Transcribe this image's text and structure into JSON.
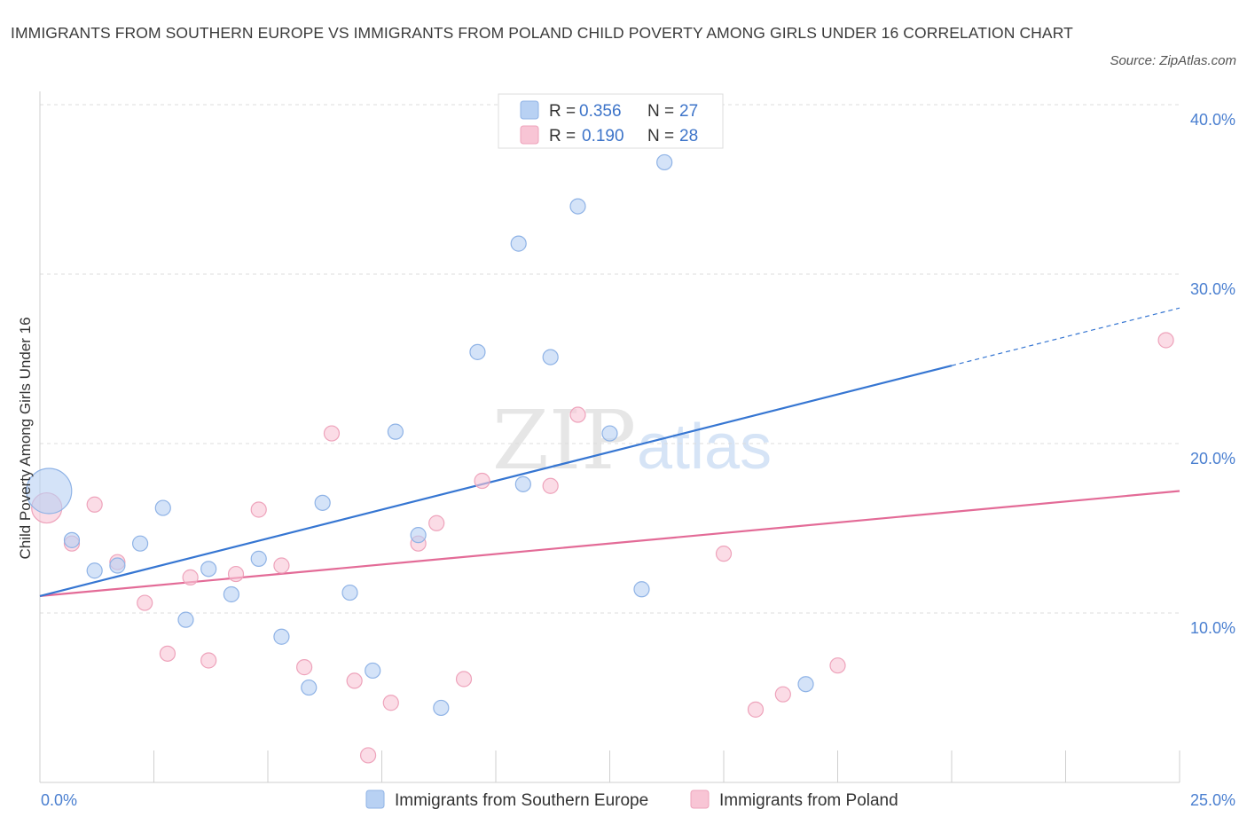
{
  "title": "IMMIGRANTS FROM SOUTHERN EUROPE VS IMMIGRANTS FROM POLAND CHILD POVERTY AMONG GIRLS UNDER 16 CORRELATION CHART",
  "source": "Source: ZipAtlas.com",
  "watermark": {
    "zip": "ZIP",
    "atlas": "atlas"
  },
  "colors": {
    "blue_fill": "#b8d1f3",
    "blue_stroke": "#8fb3e6",
    "blue_line": "#3676d2",
    "pink_fill": "#f8c5d5",
    "pink_stroke": "#eea3bb",
    "pink_line": "#e36b97",
    "grid": "#dcdcdc",
    "axis_label": "#4a7fd0"
  },
  "legend_box": {
    "rows": [
      {
        "r_label": "R =",
        "r_value": "0.356",
        "n_label": "N =",
        "n_value": "27"
      },
      {
        "r_label": "R =",
        "r_value": "0.190",
        "n_label": "N =",
        "n_value": "28"
      }
    ]
  },
  "chart_data": {
    "type": "scatter",
    "title": "IMMIGRANTS FROM SOUTHERN EUROPE VS IMMIGRANTS FROM POLAND CHILD POVERTY AMONG GIRLS UNDER 16 CORRELATION CHART",
    "xlabel": "",
    "ylabel": "Child Poverty Among Girls Under 16",
    "xlim": [
      0,
      25
    ],
    "ylim": [
      0,
      40
    ],
    "x_tick_labels": [
      {
        "value": 0,
        "label": "0.0%"
      },
      {
        "value": 25,
        "label": "25.0%"
      }
    ],
    "y_tick_labels": [
      {
        "value": 10,
        "label": "10.0%"
      },
      {
        "value": 20,
        "label": "20.0%"
      },
      {
        "value": 30,
        "label": "30.0%"
      },
      {
        "value": 40,
        "label": "40.0%"
      }
    ],
    "grid": true,
    "legend_position": "bottom",
    "series": [
      {
        "name": "Immigrants from Southern Europe",
        "color": "#b8d1f3",
        "R": 0.356,
        "N": 27,
        "trend": {
          "x0": 0,
          "y0": 11.0,
          "x1": 20,
          "y1": 24.6,
          "dash_to_x": 25,
          "dash_to_y": 28.0
        },
        "points": [
          {
            "x": 0.2,
            "y": 17.2,
            "size": 3
          },
          {
            "x": 0.7,
            "y": 14.3
          },
          {
            "x": 1.2,
            "y": 12.5
          },
          {
            "x": 1.7,
            "y": 12.8
          },
          {
            "x": 2.2,
            "y": 14.1
          },
          {
            "x": 2.7,
            "y": 16.2
          },
          {
            "x": 3.2,
            "y": 9.6
          },
          {
            "x": 3.7,
            "y": 12.6
          },
          {
            "x": 4.2,
            "y": 11.1
          },
          {
            "x": 4.8,
            "y": 13.2
          },
          {
            "x": 5.3,
            "y": 8.6
          },
          {
            "x": 5.9,
            "y": 5.6
          },
          {
            "x": 6.2,
            "y": 16.5
          },
          {
            "x": 6.8,
            "y": 11.2
          },
          {
            "x": 7.3,
            "y": 6.6
          },
          {
            "x": 7.8,
            "y": 20.7
          },
          {
            "x": 8.3,
            "y": 14.6
          },
          {
            "x": 8.8,
            "y": 4.4
          },
          {
            "x": 9.6,
            "y": 25.4
          },
          {
            "x": 10.5,
            "y": 31.8
          },
          {
            "x": 10.6,
            "y": 17.6
          },
          {
            "x": 11.2,
            "y": 25.1
          },
          {
            "x": 11.8,
            "y": 34.0
          },
          {
            "x": 12.5,
            "y": 20.6
          },
          {
            "x": 13.2,
            "y": 11.4
          },
          {
            "x": 13.7,
            "y": 36.6
          },
          {
            "x": 16.8,
            "y": 5.8
          }
        ]
      },
      {
        "name": "Immigrants from Poland",
        "color": "#f8c5d5",
        "R": 0.19,
        "N": 28,
        "trend": {
          "x0": 0,
          "y0": 11.0,
          "x1": 25,
          "y1": 17.2
        },
        "points": [
          {
            "x": 0.15,
            "y": 16.2,
            "size": 2
          },
          {
            "x": 0.7,
            "y": 14.1
          },
          {
            "x": 1.2,
            "y": 16.4
          },
          {
            "x": 1.7,
            "y": 13.0
          },
          {
            "x": 2.3,
            "y": 10.6
          },
          {
            "x": 2.8,
            "y": 7.6
          },
          {
            "x": 3.3,
            "y": 12.1
          },
          {
            "x": 3.7,
            "y": 7.2
          },
          {
            "x": 4.3,
            "y": 12.3
          },
          {
            "x": 4.8,
            "y": 16.1
          },
          {
            "x": 5.3,
            "y": 12.8
          },
          {
            "x": 5.8,
            "y": 6.8
          },
          {
            "x": 6.4,
            "y": 20.6
          },
          {
            "x": 6.9,
            "y": 6.0
          },
          {
            "x": 7.2,
            "y": 1.6
          },
          {
            "x": 7.7,
            "y": 4.7
          },
          {
            "x": 8.3,
            "y": 14.1
          },
          {
            "x": 8.7,
            "y": 15.3
          },
          {
            "x": 9.3,
            "y": 6.1
          },
          {
            "x": 9.7,
            "y": 17.8
          },
          {
            "x": 11.2,
            "y": 17.5
          },
          {
            "x": 11.8,
            "y": 21.7
          },
          {
            "x": 13.0,
            "y": 38.8
          },
          {
            "x": 15.0,
            "y": 13.5
          },
          {
            "x": 15.7,
            "y": 4.3
          },
          {
            "x": 16.3,
            "y": 5.2
          },
          {
            "x": 17.5,
            "y": 6.9
          },
          {
            "x": 24.7,
            "y": 26.1
          }
        ]
      }
    ]
  }
}
